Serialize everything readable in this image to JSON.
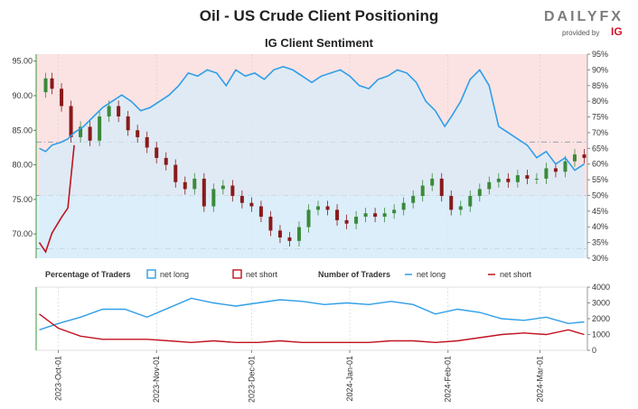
{
  "header": {
    "title": "Oil - US Crude Client Positioning",
    "subtitle": "IG Client Sentiment"
  },
  "logo": {
    "name": "DAILYFX",
    "main": "DAILY",
    "fx": "FX",
    "provided_by": "provided by",
    "ig": "IG"
  },
  "colors": {
    "long": "#2f9ee8",
    "short": "#c1121f",
    "bull_candle": "#3a8a3a",
    "bear_candle": "#8a1a1a",
    "upper_zone": "#fbe3e3",
    "lower_zone": "#e6f3fb",
    "axis": "#3a9a3a"
  },
  "legend": {
    "pct_title": "Percentage of Traders",
    "pct_long": "net long",
    "pct_short": "net short",
    "num_title": "Number of Traders",
    "num_long": "net long",
    "num_short": "net short"
  },
  "chart_data": [
    {
      "type": "line",
      "panel": "price_and_percentage",
      "left_axis": {
        "label": "price",
        "ylim": [
          66.5,
          96
        ],
        "ticks": [
          "70.00",
          "75.00",
          "80.00",
          "85.00",
          "90.00",
          "95.00"
        ]
      },
      "right_axis": {
        "label": "percentage",
        "ylim": [
          30,
          95
        ],
        "ticks": [
          "30%",
          "35%",
          "40%",
          "45%",
          "50%",
          "55%",
          "60%",
          "65%",
          "70%",
          "75%",
          "80%",
          "85%",
          "90%",
          "95%"
        ]
      },
      "x_ticks": [
        "2023-Oct-01",
        "2023-Nov-01",
        "2023-Dec-01",
        "2024-Jan-01",
        "2024-Feb-01",
        "2024-Mar-01"
      ],
      "x_range": [
        "2023-09-24",
        "2024-03-16"
      ],
      "reference_levels_pct": [
        33,
        50,
        67
      ],
      "series": [
        {
          "name": "net long",
          "x": [
            "2023-09-25",
            "2023-09-27",
            "2023-09-29",
            "2023-10-02",
            "2023-10-04",
            "2023-10-06",
            "2023-10-09",
            "2023-10-12",
            "2023-10-15",
            "2023-10-18",
            "2023-10-21",
            "2023-10-24",
            "2023-10-27",
            "2023-10-30",
            "2023-11-02",
            "2023-11-05",
            "2023-11-08",
            "2023-11-11",
            "2023-11-14",
            "2023-11-17",
            "2023-11-20",
            "2023-11-23",
            "2023-11-26",
            "2023-11-29",
            "2023-12-02",
            "2023-12-05",
            "2023-12-08",
            "2023-12-11",
            "2023-12-14",
            "2023-12-17",
            "2023-12-20",
            "2023-12-23",
            "2023-12-26",
            "2023-12-29",
            "2024-01-01",
            "2024-01-04",
            "2024-01-07",
            "2024-01-10",
            "2024-01-13",
            "2024-01-16",
            "2024-01-19",
            "2024-01-22",
            "2024-01-25",
            "2024-01-28",
            "2024-01-31",
            "2024-02-02",
            "2024-02-05",
            "2024-02-08",
            "2024-02-11",
            "2024-02-14",
            "2024-02-17",
            "2024-02-20",
            "2024-02-23",
            "2024-02-26",
            "2024-02-29",
            "2024-03-03",
            "2024-03-06",
            "2024-03-09",
            "2024-03-12",
            "2024-03-15"
          ],
          "values": [
            65,
            64,
            66,
            67,
            68,
            70,
            72,
            75,
            78,
            80,
            82,
            80,
            77,
            78,
            80,
            82,
            85,
            89,
            88,
            90,
            89,
            85,
            90,
            88,
            89,
            87,
            90,
            91,
            90,
            88,
            86,
            88,
            89,
            90,
            88,
            85,
            84,
            87,
            88,
            90,
            89,
            86,
            80,
            77,
            72,
            75,
            80,
            87,
            90,
            85,
            72,
            70,
            68,
            66,
            62,
            64,
            60,
            62,
            58,
            60
          ]
        },
        {
          "name": "net short",
          "x": [
            "2023-09-25",
            "2023-09-27",
            "2023-09-29",
            "2023-10-02",
            "2023-10-04",
            "2023-10-06"
          ],
          "values": [
            35,
            32,
            38,
            43,
            46,
            66
          ]
        }
      ],
      "price": {
        "name": "Oil - US Crude",
        "x": [
          "2023-09-25",
          "2023-09-27",
          "2023-09-29",
          "2023-10-02",
          "2023-10-05",
          "2023-10-08",
          "2023-10-11",
          "2023-10-14",
          "2023-10-17",
          "2023-10-20",
          "2023-10-23",
          "2023-10-26",
          "2023-10-29",
          "2023-11-01",
          "2023-11-04",
          "2023-11-07",
          "2023-11-10",
          "2023-11-13",
          "2023-11-16",
          "2023-11-19",
          "2023-11-22",
          "2023-11-25",
          "2023-11-28",
          "2023-12-01",
          "2023-12-04",
          "2023-12-07",
          "2023-12-10",
          "2023-12-13",
          "2023-12-16",
          "2023-12-19",
          "2023-12-22",
          "2023-12-25",
          "2023-12-28",
          "2023-12-31",
          "2024-01-03",
          "2024-01-06",
          "2024-01-09",
          "2024-01-12",
          "2024-01-15",
          "2024-01-18",
          "2024-01-21",
          "2024-01-24",
          "2024-01-27",
          "2024-01-30",
          "2024-02-02",
          "2024-02-05",
          "2024-02-08",
          "2024-02-11",
          "2024-02-14",
          "2024-02-17",
          "2024-02-20",
          "2024-02-23",
          "2024-02-26",
          "2024-02-29",
          "2024-03-03",
          "2024-03-06",
          "2024-03-09",
          "2024-03-12",
          "2024-03-15"
        ],
        "values": [
          90.5,
          92.5,
          91.0,
          88.5,
          84.0,
          85.5,
          83.5,
          87.0,
          88.5,
          87.0,
          85.0,
          84.0,
          82.5,
          81.0,
          80.0,
          77.5,
          76.5,
          78.0,
          74.0,
          76.5,
          77.0,
          75.5,
          74.5,
          74.0,
          72.5,
          70.5,
          69.5,
          69.0,
          71.0,
          73.5,
          74.0,
          73.5,
          72.0,
          71.5,
          72.5,
          73.0,
          72.5,
          73.0,
          73.5,
          74.5,
          75.5,
          77.0,
          78.0,
          75.5,
          73.5,
          74.0,
          75.5,
          76.5,
          77.5,
          78.0,
          77.5,
          78.5,
          78.0,
          78.0,
          79.5,
          79.0,
          80.5,
          81.5,
          81.0
        ]
      }
    },
    {
      "type": "area",
      "panel": "number_of_traders",
      "ylim": [
        0,
        4000
      ],
      "right_ticks": [
        "0",
        "1000",
        "2000",
        "3000",
        "4000"
      ],
      "series": [
        {
          "name": "net long",
          "x": [
            "2023-09-25",
            "2023-10-01",
            "2023-10-08",
            "2023-10-15",
            "2023-10-22",
            "2023-10-29",
            "2023-11-05",
            "2023-11-12",
            "2023-11-19",
            "2023-11-26",
            "2023-12-03",
            "2023-12-10",
            "2023-12-17",
            "2023-12-24",
            "2023-12-31",
            "2024-01-07",
            "2024-01-14",
            "2024-01-21",
            "2024-01-28",
            "2024-02-04",
            "2024-02-11",
            "2024-02-18",
            "2024-02-25",
            "2024-03-03",
            "2024-03-10",
            "2024-03-15"
          ],
          "values": [
            1300,
            1700,
            2100,
            2600,
            2600,
            2100,
            2700,
            3300,
            3000,
            2800,
            3000,
            3200,
            3100,
            2900,
            3000,
            2900,
            3100,
            2900,
            2300,
            2600,
            2400,
            2000,
            1900,
            2100,
            1700,
            1800
          ]
        },
        {
          "name": "net short",
          "x": [
            "2023-09-25",
            "2023-10-01",
            "2023-10-08",
            "2023-10-15",
            "2023-10-22",
            "2023-10-29",
            "2023-11-05",
            "2023-11-12",
            "2023-11-19",
            "2023-11-26",
            "2023-12-03",
            "2023-12-10",
            "2023-12-17",
            "2023-12-24",
            "2023-12-31",
            "2024-01-07",
            "2024-01-14",
            "2024-01-21",
            "2024-01-28",
            "2024-02-04",
            "2024-02-11",
            "2024-02-18",
            "2024-02-25",
            "2024-03-03",
            "2024-03-10",
            "2024-03-15"
          ],
          "values": [
            2300,
            1400,
            900,
            700,
            700,
            700,
            600,
            500,
            600,
            500,
            500,
            600,
            500,
            500,
            500,
            500,
            600,
            600,
            500,
            600,
            800,
            1000,
            1100,
            1000,
            1300,
            1000
          ]
        }
      ]
    }
  ]
}
